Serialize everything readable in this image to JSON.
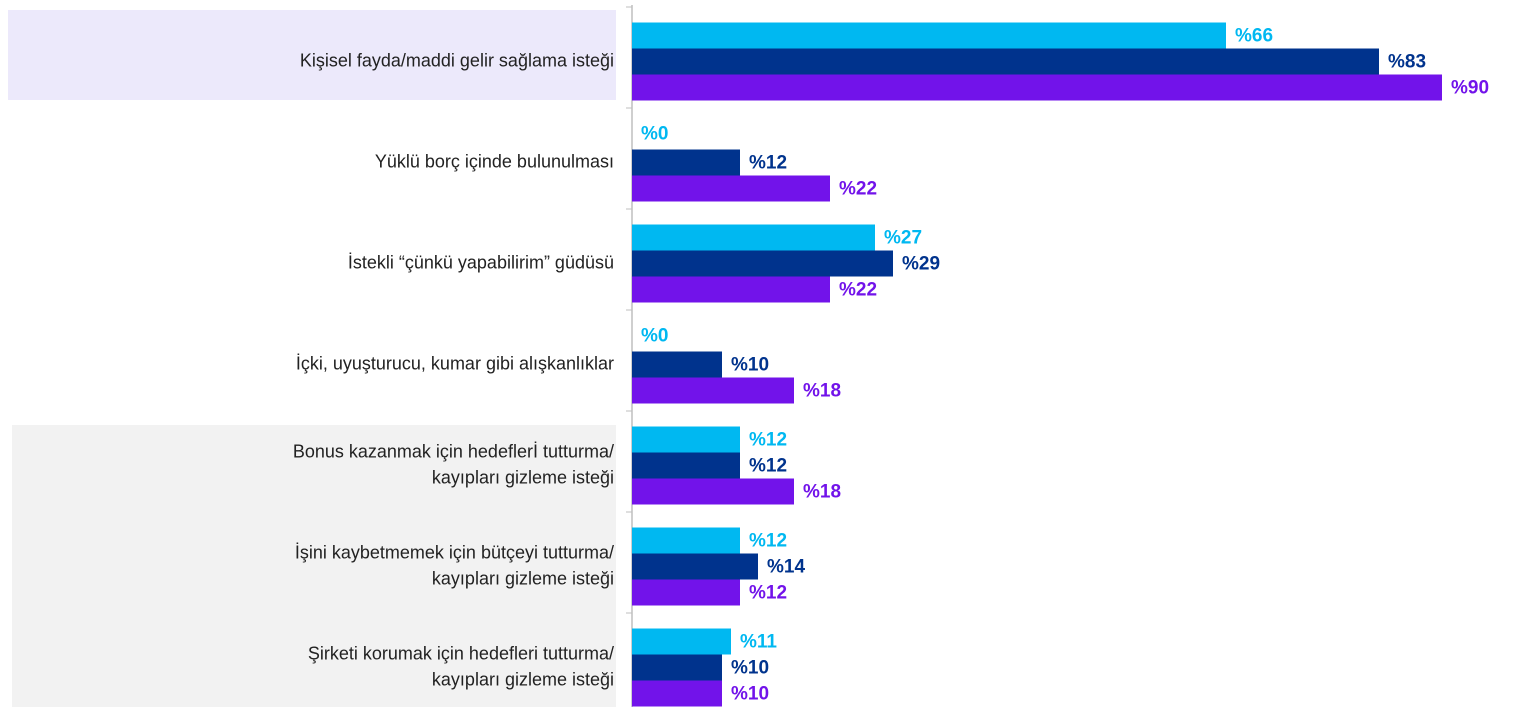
{
  "chart_data": {
    "type": "bar",
    "orientation": "horizontal",
    "categories": [
      [
        "Kişisel fayda/maddi gelir sağlama isteği"
      ],
      [
        "Yüklü borç içinde bulunulması"
      ],
      [
        "İstekli “çünkü yapabilirim” güdüsü"
      ],
      [
        "İçki, uyuşturucu, kumar gibi alışkanlıklar"
      ],
      [
        "Bonus kazanmak için hedeflerİ tutturma/",
        "kayıpları gizleme isteği"
      ],
      [
        "İşini kaybetmemek için bütçeyi tutturma/",
        "kayıpları gizleme isteği"
      ],
      [
        "Şirketi korumak için hedefleri tutturma/",
        "kayıpları gizleme isteği"
      ]
    ],
    "series": [
      {
        "color": "#00b8f1",
        "values": [
          66,
          0,
          27,
          0,
          12,
          12,
          11
        ],
        "value_labels": [
          "%66",
          "%0",
          "%27",
          "%0",
          "%12",
          "%12",
          "%11"
        ]
      },
      {
        "color": "#00338d",
        "values": [
          83,
          12,
          29,
          10,
          12,
          14,
          10
        ],
        "value_labels": [
          "%83",
          "%12",
          "%29",
          "%10",
          "%12",
          "%14",
          "%10"
        ]
      },
      {
        "color": "#7213ea",
        "values": [
          90,
          22,
          22,
          18,
          18,
          12,
          10
        ],
        "value_labels": [
          "%90",
          "%22",
          "%22",
          "%18",
          "%18",
          "%12",
          "%10"
        ]
      }
    ],
    "xlim": [
      0,
      90
    ]
  }
}
